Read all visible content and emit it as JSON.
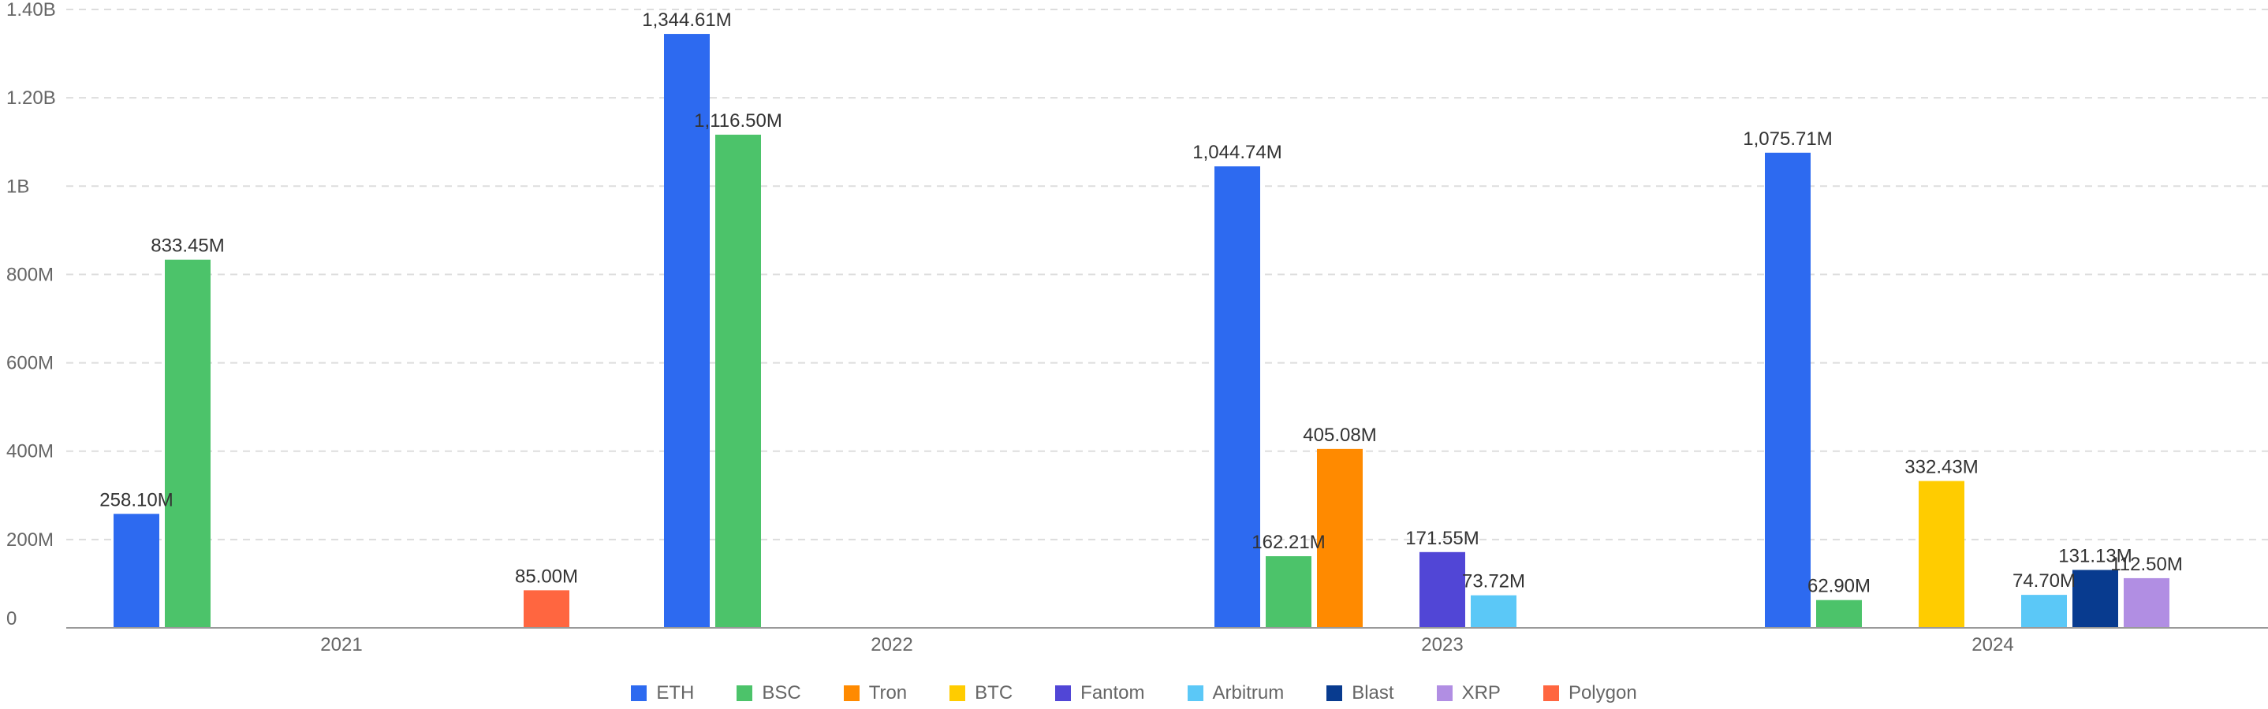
{
  "chart_data": {
    "type": "bar",
    "title": "",
    "xlabel": "",
    "ylabel": "",
    "ylim": [
      0,
      1400000000
    ],
    "yticks": [
      0,
      200000000,
      400000000,
      600000000,
      800000000,
      1000000000,
      1200000000,
      1400000000
    ],
    "ytick_labels": [
      "0",
      "200M",
      "400M",
      "600M",
      "800M",
      "1B",
      "1.20B",
      "1.40B"
    ],
    "categories": [
      "2021",
      "2022",
      "2023",
      "2024"
    ],
    "grid": true,
    "legend_position": "bottom-center",
    "series": [
      {
        "name": "ETH",
        "color": "#2d6af0",
        "values": [
          258100000,
          1344610000,
          1044740000,
          1075710000
        ],
        "labels": [
          "258.10M",
          "1,344.61M",
          "1,044.74M",
          "1,075.71M"
        ]
      },
      {
        "name": "BSC",
        "color": "#4cc36a",
        "values": [
          833450000,
          1116500000,
          162210000,
          62900000
        ],
        "labels": [
          "833.45M",
          "1,116.50M",
          "162.21M",
          "62.90M"
        ]
      },
      {
        "name": "Tron",
        "color": "#ff8a00",
        "values": [
          null,
          null,
          405080000,
          null
        ],
        "labels": [
          "",
          "",
          "405.08M",
          ""
        ]
      },
      {
        "name": "BTC",
        "color": "#ffcc00",
        "values": [
          null,
          null,
          null,
          332430000
        ],
        "labels": [
          "",
          "",
          "",
          "332.43M"
        ]
      },
      {
        "name": "Fantom",
        "color": "#5146d6",
        "values": [
          null,
          null,
          171550000,
          null
        ],
        "labels": [
          "",
          "",
          "171.55M",
          ""
        ]
      },
      {
        "name": "Arbitrum",
        "color": "#5bc8f7",
        "values": [
          null,
          null,
          73720000,
          74700000
        ],
        "labels": [
          "",
          "",
          "73.72M",
          "74.70M"
        ]
      },
      {
        "name": "Blast",
        "color": "#083b8f",
        "values": [
          null,
          null,
          null,
          131130000
        ],
        "labels": [
          "",
          "",
          "",
          "131.13M"
        ]
      },
      {
        "name": "XRP",
        "color": "#b18ee3",
        "values": [
          null,
          null,
          null,
          112500000
        ],
        "labels": [
          "",
          "",
          "",
          "112.50M"
        ]
      },
      {
        "name": "Polygon",
        "color": "#ff6640",
        "values": [
          85000000,
          null,
          null,
          null
        ],
        "labels": [
          "85.00M",
          "",
          "",
          ""
        ]
      }
    ]
  }
}
